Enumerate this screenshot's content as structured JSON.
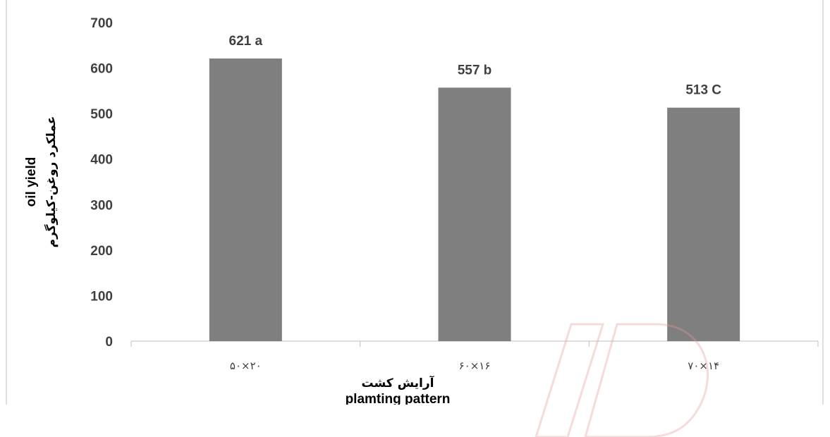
{
  "chart_data": {
    "type": "bar",
    "categories": [
      "۵۰×۲۰",
      "۶۰×۱۶",
      "۷۰×۱۴"
    ],
    "values": [
      621,
      557,
      513
    ],
    "data_labels": [
      "621 a",
      "557 b",
      "513  C"
    ],
    "ylim": [
      0,
      700
    ],
    "yticks": [
      0,
      100,
      200,
      300,
      400,
      500,
      600,
      700
    ],
    "ylabel": "oil yield",
    "ylabel_fa": "عملکرد روغن-کیلوگرم",
    "xlabel": "plamting pattern",
    "xlabel_fa": "آرایش کشت",
    "bar_color": "#7f7f7f",
    "grid": false,
    "legend": "none"
  }
}
